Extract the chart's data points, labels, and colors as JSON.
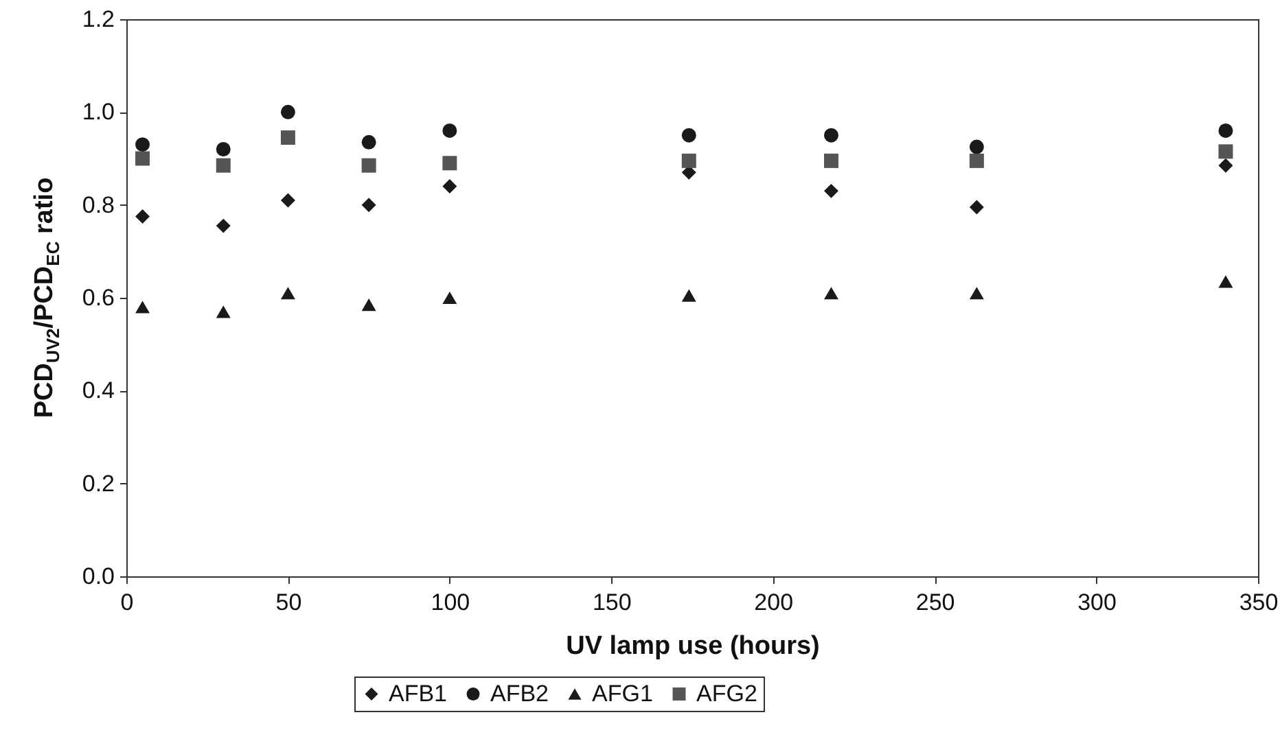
{
  "chart_data": {
    "type": "scatter",
    "xlabel": "UV lamp use (hours)",
    "ylabel": "PCD$_{UV2}$/PCD$_{EC}$ ratio",
    "x": [
      5,
      30,
      50,
      75,
      100,
      174,
      218,
      263,
      340
    ],
    "series": [
      {
        "name": "AFB1",
        "color": "#1a1a1a",
        "marker": "diamond",
        "values": [
          0.775,
          0.755,
          0.81,
          0.8,
          0.84,
          0.87,
          0.83,
          0.795,
          0.885
        ]
      },
      {
        "name": "AFB2",
        "color": "#1a1a1a",
        "marker": "circle",
        "values": [
          0.93,
          0.92,
          1.0,
          0.935,
          0.96,
          0.95,
          0.95,
          0.925,
          0.96
        ]
      },
      {
        "name": "AFG1",
        "color": "#1a1a1a",
        "marker": "triangle",
        "values": [
          0.58,
          0.57,
          0.61,
          0.585,
          0.6,
          0.605,
          0.61,
          0.61,
          0.635
        ]
      },
      {
        "name": "AFG2",
        "color": "#555555",
        "marker": "square",
        "values": [
          0.9,
          0.885,
          0.945,
          0.885,
          0.89,
          0.895,
          0.895,
          0.895,
          0.915
        ]
      }
    ],
    "xlim": [
      0,
      350
    ],
    "xticks": [
      0,
      50,
      100,
      150,
      200,
      250,
      300,
      350
    ],
    "ylim": [
      0,
      1.2
    ],
    "yticks": [
      {
        "value": 0,
        "label": "0.0"
      },
      {
        "value": 0.2,
        "label": "0.2"
      },
      {
        "value": 0.4,
        "label": "0.4"
      },
      {
        "value": 0.6,
        "label": "0.6"
      },
      {
        "value": 0.8,
        "label": "0.8"
      },
      {
        "value": 1.0,
        "label": "1.0"
      },
      {
        "value": 1.2,
        "label": "1.2"
      }
    ],
    "grid": false,
    "legend": "bottom"
  }
}
